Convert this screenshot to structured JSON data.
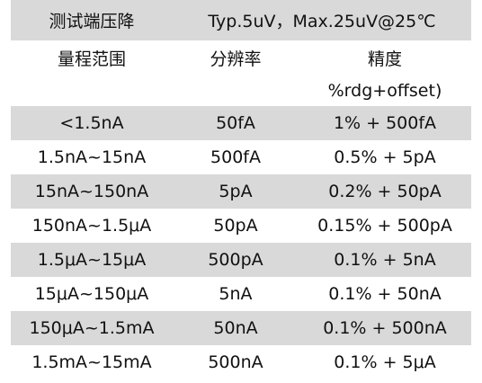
{
  "header": {
    "top": [
      "测试端压降",
      "Typ.5uV，Max.25uV@25℃"
    ],
    "columns": [
      "量程范围",
      "分辨率",
      "精度"
    ],
    "note": "%rdg+offset)"
  },
  "table": {
    "rows": [
      [
        "<1.5nA",
        "50fA",
        "1% + 500fA"
      ],
      [
        "1.5nA~15nA",
        "500fA",
        "0.5% + 5pA"
      ],
      [
        "15nA~150nA",
        "5pA",
        "0.2% + 50pA"
      ],
      [
        "150nA~1.5μA",
        "50pA",
        "0.15% + 500pA"
      ],
      [
        "1.5μA~15μA",
        "500pA",
        "0.1% + 5nA"
      ],
      [
        "15μA~150μA",
        "5nA",
        "0.1% + 50nA"
      ],
      [
        "150μA~1.5mA",
        "50nA",
        "0.1% + 500nA"
      ],
      [
        "1.5mA~15mA",
        "500nA",
        "0.1% + 5μA"
      ]
    ]
  }
}
